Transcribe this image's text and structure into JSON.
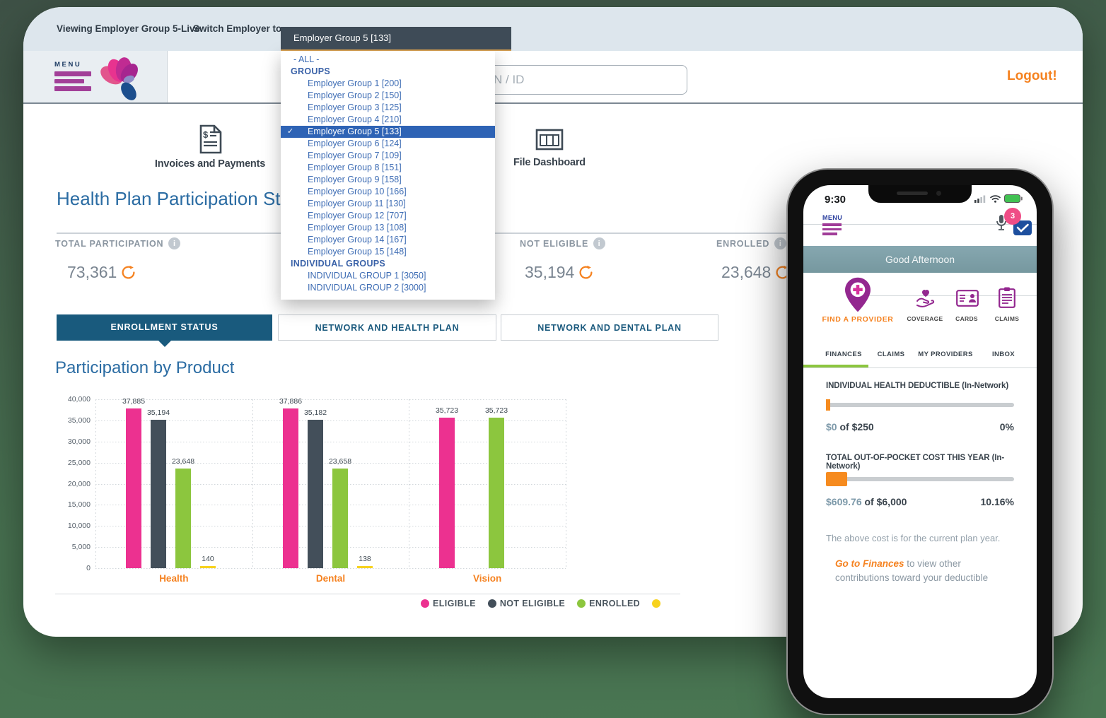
{
  "colors": {
    "accent_orange": "#f58220",
    "brand_purple": "#a23f98",
    "brand_magenta": "#e8338f",
    "bar_pink": "#ec3190",
    "bar_dark": "#434f5a",
    "bar_green": "#8cc63e",
    "bar_yellow": "#f7d21e",
    "tab_active": "#195a7d",
    "heading_blue": "#2b6ca3",
    "dropdown_blue": "#3d6cb4",
    "dropdown_selected_bg": "#2e63b5",
    "phone_banner_teal": "#7fa2ac",
    "progress_orange": "#f68b1f",
    "battery_green": "#41c152",
    "badge_pink": "#ef4d86"
  },
  "top_bar": {
    "viewing_text": "Viewing Employer Group 5-Live.",
    "switch_label": "Switch Employer to:",
    "selected_employer": "Employer Group 5 [133]"
  },
  "employer_dropdown": {
    "all_label": "- ALL -",
    "sections": [
      {
        "header": "GROUPS",
        "selected_index": 4,
        "items": [
          "Employer Group 1 [200]",
          "Employer Group 2 [150]",
          "Employer Group 3 [125]",
          "Employer Group 4 [210]",
          "Employer Group 5 [133]",
          "Employer Group 6 [124]",
          "Employer Group 7 [109]",
          "Employer Group 8 [151]",
          "Employer Group 9 [158]",
          "Employer Group 10 [166]",
          "Employer Group 11 [130]",
          "Employer Group 12 [707]",
          "Employer Group 13 [108]",
          "Employer Group 14 [167]",
          "Employer Group 15 [148]"
        ]
      },
      {
        "header": "INDIVIDUAL GROUPS",
        "selected_index": -1,
        "items": [
          "INDIVIDUAL GROUP 1 [3050]",
          "INDIVIDUAL GROUP 2 [3000]"
        ]
      }
    ]
  },
  "header": {
    "menu_label": "MENU",
    "search_placeholder": "N / ID",
    "logout_label": "Logout!"
  },
  "nav": {
    "items": [
      {
        "label": "Invoices and Payments"
      },
      {
        "label": "File Dashboard"
      }
    ]
  },
  "participation": {
    "title": "Health Plan Participation Status",
    "stats": [
      {
        "label": "TOTAL PARTICIPATION",
        "value": "73,361"
      },
      {
        "label": "NOT ELIGIBLE",
        "value": "35,194"
      },
      {
        "label": "ENROLLED",
        "value": "23,648"
      }
    ]
  },
  "tabs": [
    {
      "label": "ENROLLMENT STATUS",
      "active": true
    },
    {
      "label": "NETWORK AND HEALTH PLAN",
      "active": false
    },
    {
      "label": "NETWORK AND DENTAL PLAN",
      "active": false
    }
  ],
  "chart_data": {
    "type": "bar",
    "title": "Participation by Product",
    "categories": [
      "Health",
      "Dental",
      "Vision"
    ],
    "series": [
      {
        "name": "ELIGIBLE",
        "color": "#ec3190",
        "values": [
          37885,
          37886,
          35723
        ]
      },
      {
        "name": "NOT ELIGIBLE",
        "color": "#434f5a",
        "values": [
          35194,
          35182,
          null
        ]
      },
      {
        "name": "ENROLLED",
        "color": "#8cc63e",
        "values": [
          23648,
          23658,
          35723
        ]
      },
      {
        "name": "",
        "color": "#f7d21e",
        "values": [
          140,
          138,
          null
        ]
      }
    ],
    "ylim": [
      0,
      40000
    ],
    "yticks": [
      0,
      5000,
      10000,
      15000,
      20000,
      25000,
      30000,
      35000,
      40000
    ],
    "grid": true,
    "legend_position": "bottom"
  },
  "phone": {
    "status": {
      "time": "9:30"
    },
    "menu_label": "MENU",
    "badge_count": "3",
    "greeting": "Good Afternoon",
    "quick_actions": [
      {
        "label": "FIND A PROVIDER"
      },
      {
        "label": "COVERAGE"
      },
      {
        "label": "CARDS"
      },
      {
        "label": "CLAIMS"
      }
    ],
    "tabs": [
      {
        "label": "FINANCES",
        "active": true
      },
      {
        "label": "CLAIMS",
        "active": false
      },
      {
        "label": "MY PROVIDERS",
        "active": false
      },
      {
        "label": "INBOX",
        "active": false
      }
    ],
    "deductible": {
      "title": "INDIVIDUAL HEALTH DEDUCTIBLE (In-Network)",
      "current": "$0",
      "of_word": "of",
      "max": "$250",
      "percent": "0%",
      "fraction": 0.0
    },
    "out_of_pocket": {
      "title": "TOTAL OUT-OF-POCKET COST THIS YEAR (In-Network)",
      "current": "$609.76",
      "of_word": "of",
      "max": "$6,000",
      "percent": "10.16%",
      "fraction": 0.1016
    },
    "note": "The above cost is for the current plan year.",
    "link_label": "Go to Finances",
    "link_rest": "to view other contributions toward your deductible"
  }
}
